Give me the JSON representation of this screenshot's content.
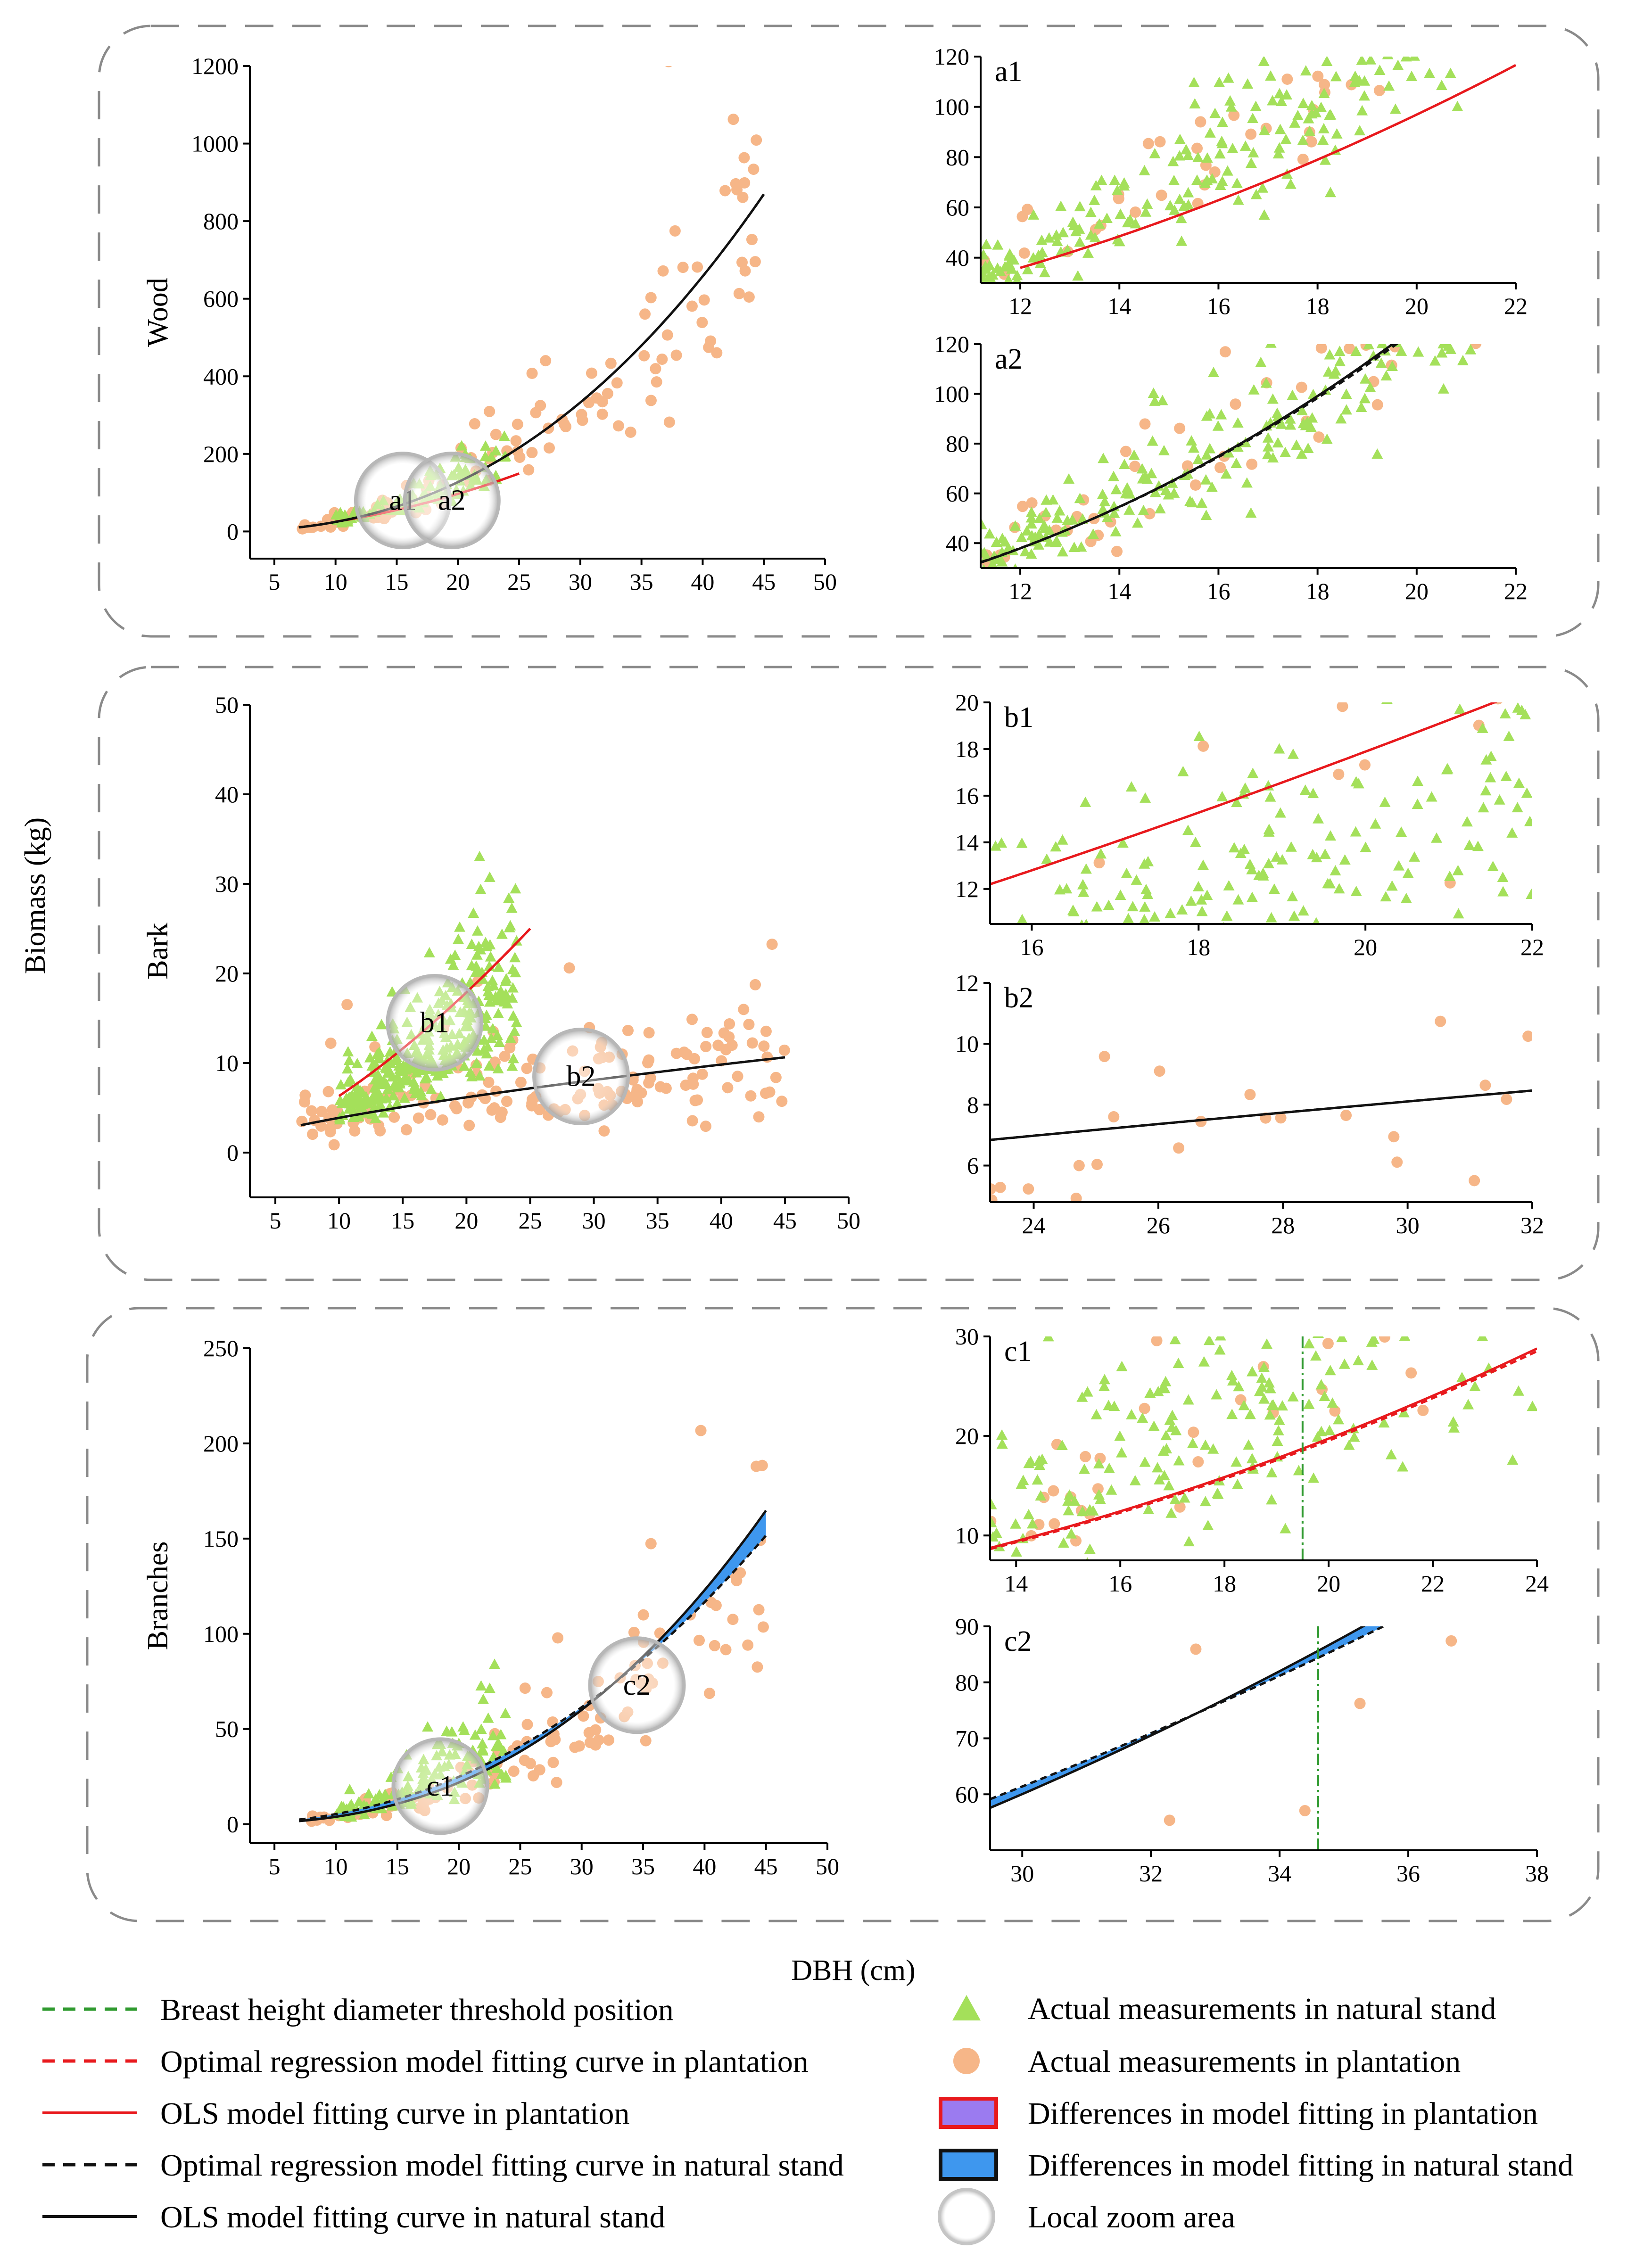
{
  "axis_labels": {
    "x": "DBH (cm)",
    "y": "Biomass (kg)"
  },
  "colors": {
    "natural_points": "#a4e05a",
    "plantation_points": "#f6b688",
    "plantation_curve": "#e8191d",
    "natural_curve": "#111111",
    "threshold_line": "#2f9a2f",
    "natural_band": "#3e97ee",
    "plantation_band": "#9b7bf0",
    "zoom_circle": "#b7b7b7"
  },
  "legend": {
    "threshold": "Breast height diameter threshold position",
    "opt_plantation": "Optimal regression model fitting curve in plantation",
    "ols_plantation": "OLS model fitting curve in plantation",
    "opt_natural": "Optimal regression model fitting curve in natural stand",
    "ols_natural": "OLS model fitting curve in natural stand",
    "natural_points": "Actual measurements in natural stand",
    "plantation_points": "Actual measurements in plantation",
    "diff_plantation": "Differences in model fitting in plantation",
    "diff_natural": "Differences in model fitting in natural stand",
    "zoom": "Local zoom area"
  },
  "chart_data": [
    {
      "id": "wood",
      "type": "scatter",
      "panel_label": "Wood",
      "xlim": [
        3,
        50
      ],
      "ylim": [
        -70,
        1200
      ],
      "xticks": [
        5,
        10,
        15,
        20,
        25,
        30,
        35,
        40,
        45,
        50
      ],
      "yticks": [
        0,
        200,
        400,
        600,
        800,
        1000,
        1200
      ],
      "natural": {
        "a": 0.14,
        "b": 2.28,
        "x": [
          7,
          45
        ],
        "n": 100,
        "xr": [
          10,
          24
        ],
        "noise": 0.28
      },
      "plantation": {
        "a": 0.105,
        "b": 2.37,
        "x": [
          7,
          45
        ],
        "n": 120,
        "xr": [
          7,
          45
        ],
        "noise": 0.3
      },
      "curves": [
        {
          "series": "OLS plantation",
          "a": 0.29,
          "b": 1.94,
          "x": [
            10,
            25
          ]
        },
        {
          "series": "Optimal plantation",
          "a": 0.29,
          "b": 1.94,
          "x": [
            10,
            25
          ]
        },
        {
          "series": "OLS natural",
          "a": 0.105,
          "b": 2.37,
          "x": [
            7,
            45
          ]
        },
        {
          "series": "Optimal natural",
          "a": 0.105,
          "b": 2.37,
          "x": [
            7,
            45
          ]
        }
      ],
      "zooms": [
        {
          "label": "a1",
          "x": 15.5,
          "y": 80
        },
        {
          "label": "a2",
          "x": 19.5,
          "y": 80
        }
      ]
    },
    {
      "id": "a1",
      "type": "scatter",
      "panel_label": "a1",
      "xlim": [
        11.2,
        22
      ],
      "ylim": [
        30,
        120
      ],
      "xticks": [
        12,
        14,
        16,
        18,
        20,
        22
      ],
      "yticks": [
        40,
        60,
        80,
        100,
        120
      ],
      "natural": {
        "a": 0.14,
        "b": 2.28,
        "x": [
          12,
          22
        ],
        "n": 230,
        "xr": [
          11.2,
          22
        ],
        "noise": 0.17
      },
      "plantation": {
        "a": 0.14,
        "b": 2.28,
        "x": [
          12,
          22
        ],
        "n": 45,
        "xr": [
          11.2,
          22
        ],
        "noise": 0.17
      },
      "curves": [
        {
          "series": "OLS plantation",
          "a": 0.29,
          "b": 1.94,
          "x": [
            12,
            22
          ]
        },
        {
          "series": "Optimal plantation",
          "a": 0.29,
          "b": 1.94,
          "x": [
            12,
            22
          ]
        }
      ]
    },
    {
      "id": "a2",
      "type": "scatter",
      "panel_label": "a2",
      "xlim": [
        11.2,
        22
      ],
      "ylim": [
        30,
        120
      ],
      "xticks": [
        12,
        14,
        16,
        18,
        20,
        22
      ],
      "yticks": [
        40,
        60,
        80,
        100,
        120
      ],
      "natural": {
        "a": 0.14,
        "b": 2.28,
        "x": [
          12,
          22
        ],
        "n": 230,
        "xr": [
          11.2,
          22
        ],
        "noise": 0.17
      },
      "plantation": {
        "a": 0.14,
        "b": 2.28,
        "x": [
          12,
          22
        ],
        "n": 45,
        "xr": [
          11.2,
          22
        ],
        "noise": 0.17
      },
      "curves": [
        {
          "series": "OLS natural",
          "a": 0.105,
          "b": 2.37,
          "x": [
            11.2,
            22
          ]
        },
        {
          "series": "Optimal natural",
          "a": 0.112,
          "b": 2.345,
          "x": [
            11.2,
            22
          ]
        }
      ]
    },
    {
      "id": "bark",
      "type": "scatter",
      "panel_label": "Bark",
      "xlim": [
        3,
        50
      ],
      "ylim": [
        -5,
        50
      ],
      "xticks": [
        5,
        10,
        15,
        20,
        25,
        30,
        35,
        40,
        45,
        50
      ],
      "yticks": [
        0,
        10,
        20,
        30,
        40,
        50
      ],
      "natural": {
        "a": 0.14,
        "b": 1.55,
        "x": [
          10,
          25
        ],
        "n": 320,
        "xr": [
          10,
          24
        ],
        "noise": 0.3
      },
      "plantation": {
        "a": 1.0,
        "b": 0.62,
        "x": [
          7,
          45
        ],
        "n": 160,
        "xr": [
          7,
          45
        ],
        "noise": 0.5
      },
      "curves": [
        {
          "series": "OLS plantation",
          "a": 0.2,
          "b": 1.5,
          "x": [
            10,
            25
          ]
        },
        {
          "series": "Optimal plantation",
          "a": 0.2,
          "b": 1.5,
          "x": [
            10,
            25
          ]
        },
        {
          "series": "OLS natural",
          "a": 0.83,
          "b": 0.67,
          "x": [
            7,
            45
          ]
        },
        {
          "series": "Optimal natural",
          "a": 0.83,
          "b": 0.67,
          "x": [
            7,
            45
          ]
        }
      ],
      "zooms": [
        {
          "label": "b1",
          "x": 17.5,
          "y": 14.5
        },
        {
          "label": "b2",
          "x": 29,
          "y": 8.5
        }
      ]
    },
    {
      "id": "b1",
      "type": "scatter",
      "panel_label": "b1",
      "xlim": [
        15.5,
        22
      ],
      "ylim": [
        10.5,
        20
      ],
      "xticks": [
        16,
        18,
        20,
        22
      ],
      "yticks": [
        12,
        14,
        16,
        18,
        20
      ],
      "natural": {
        "a": 0.14,
        "b": 1.55,
        "x": [
          15.5,
          22
        ],
        "n": 190,
        "xr": [
          15.5,
          22
        ],
        "noise": 0.2
      },
      "plantation": {
        "a": 0.14,
        "b": 1.55,
        "x": [
          15.5,
          22
        ],
        "n": 10,
        "xr": [
          15.5,
          22
        ],
        "noise": 0.2
      },
      "curves": [
        {
          "series": "OLS plantation",
          "a": 0.2,
          "b": 1.5,
          "x": [
            15.5,
            22
          ]
        },
        {
          "series": "Optimal plantation",
          "a": 0.2,
          "b": 1.5,
          "x": [
            15.5,
            22
          ]
        }
      ]
    },
    {
      "id": "b2",
      "type": "scatter",
      "panel_label": "b2",
      "xlim": [
        23.3,
        32
      ],
      "ylim": [
        4.8,
        12
      ],
      "xticks": [
        24,
        26,
        28,
        30,
        32
      ],
      "yticks": [
        6,
        8,
        10,
        12
      ],
      "natural": {
        "a": 1,
        "b": 0,
        "x": [
          24,
          32
        ],
        "n": 0,
        "xr": [
          24,
          32
        ],
        "noise": 0
      },
      "plantation": {
        "a": 0.83,
        "b": 0.67,
        "x": [
          23.3,
          32
        ],
        "n": 24,
        "xr": [
          23.3,
          32
        ],
        "noise": 0.3
      },
      "curves": [
        {
          "series": "OLS natural",
          "a": 0.83,
          "b": 0.67,
          "x": [
            23.3,
            32
          ]
        },
        {
          "series": "Optimal natural",
          "a": 0.83,
          "b": 0.67,
          "x": [
            23.3,
            32
          ]
        }
      ]
    },
    {
      "id": "branches",
      "type": "scatter",
      "panel_label": "Branches",
      "xlim": [
        3,
        50
      ],
      "ylim": [
        -10,
        250
      ],
      "xticks": [
        5,
        10,
        15,
        20,
        25,
        30,
        35,
        40,
        45,
        50
      ],
      "yticks": [
        0,
        50,
        100,
        150,
        200,
        250
      ],
      "natural": {
        "a": 0.04,
        "b": 2.2,
        "x": [
          10,
          24
        ],
        "n": 140,
        "xr": [
          10,
          24
        ],
        "noise": 0.35
      },
      "plantation": {
        "a": 0.015,
        "b": 2.4,
        "x": [
          7,
          45
        ],
        "n": 120,
        "xr": [
          7,
          45
        ],
        "noise": 0.3
      },
      "curves": [
        {
          "series": "OLS natural",
          "a": 0.0126,
          "b": 2.49,
          "x": [
            7,
            45
          ]
        },
        {
          "series": "Optimal natural",
          "a": 0.0312,
          "b": 2.23,
          "x": [
            7,
            45
          ]
        }
      ],
      "band": {
        "series": "Differences natural",
        "upper": {
          "a": 0.0126,
          "b": 2.49
        },
        "lower": {
          "a": 0.0312,
          "b": 2.23
        },
        "x": [
          7,
          45
        ]
      },
      "zooms": [
        {
          "label": "c1",
          "x": 18.5,
          "y": 20
        },
        {
          "label": "c2",
          "x": 34.5,
          "y": 73
        }
      ]
    },
    {
      "id": "c1",
      "type": "scatter",
      "panel_label": "c1",
      "xlim": [
        13.5,
        24
      ],
      "ylim": [
        7.5,
        30
      ],
      "xticks": [
        14,
        16,
        18,
        20,
        22,
        24
      ],
      "yticks": [
        10,
        20,
        30
      ],
      "natural": {
        "a": 0.04,
        "b": 2.2,
        "x": [
          13.5,
          24
        ],
        "n": 260,
        "xr": [
          13.5,
          24
        ],
        "noise": 0.35
      },
      "plantation": {
        "a": 0.04,
        "b": 2.2,
        "x": [
          13.5,
          24
        ],
        "n": 40,
        "xr": [
          13.5,
          24
        ],
        "noise": 0.35
      },
      "curves": [
        {
          "series": "OLS plantation",
          "a": 0.04,
          "b": 2.07,
          "x": [
            13.5,
            24
          ]
        },
        {
          "series": "Optimal plantation",
          "a": 0.039,
          "b": 2.075,
          "x": [
            13.5,
            24
          ]
        }
      ],
      "threshold_x": 19.5
    },
    {
      "id": "c2",
      "type": "scatter",
      "panel_label": "c2",
      "xlim": [
        29.5,
        38
      ],
      "ylim": [
        50,
        90
      ],
      "xticks": [
        30,
        32,
        34,
        36,
        38
      ],
      "yticks": [
        60,
        70,
        80,
        90
      ],
      "natural": {
        "a": 1,
        "b": 0,
        "x": [
          30,
          38
        ],
        "n": 0,
        "xr": [
          30,
          38
        ],
        "noise": 0
      },
      "plantation": {
        "a": 0.0126,
        "b": 2.49,
        "x": [
          29.5,
          38
        ],
        "n": 10,
        "xr": [
          29.5,
          38
        ],
        "noise": 0.18
      },
      "curves": [
        {
          "series": "OLS natural",
          "a": 0.0126,
          "b": 2.49,
          "x": [
            29.5,
            38
          ]
        },
        {
          "series": "Optimal natural",
          "a": 0.0312,
          "b": 2.23,
          "x": [
            29.5,
            38
          ]
        }
      ],
      "band": {
        "series": "Differences natural",
        "upper": {
          "a": 0.0126,
          "b": 2.49
        },
        "lower": {
          "a": 0.0312,
          "b": 2.23
        },
        "x": [
          29.5,
          38
        ]
      },
      "threshold_x": 34.6
    }
  ]
}
